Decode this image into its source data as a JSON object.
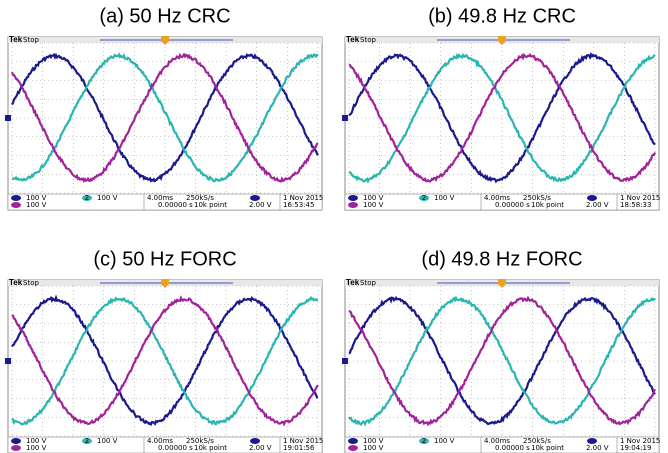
{
  "panels": [
    {
      "title": "(a) 50 Hz CRC",
      "brand": "Tek",
      "status": "Stop",
      "channel_scales": [
        "100 V",
        "100 V",
        "100 V"
      ],
      "channel2_label": "2",
      "timebase": "4.00ms",
      "sample_rate": "250kS/s",
      "delay": "0.00000 s",
      "record": "10k point",
      "trigger_level": "2.00 V",
      "date": "1 Nov 2015",
      "time": "16:53:45"
    },
    {
      "title": "(b) 49.8 Hz CRC",
      "brand": "Tek",
      "status": "Stop",
      "channel_scales": [
        "100 V",
        "100 V",
        "100 V"
      ],
      "channel2_label": "2",
      "timebase": "4.00ms",
      "sample_rate": "250kS/s",
      "delay": "0.00000 s",
      "record": "10k point",
      "trigger_level": "2.00 V",
      "date": "1 Nov 2015",
      "time": "18:58:33"
    },
    {
      "title": "(c) 50 Hz FORC",
      "brand": "Tek",
      "status": "Stop",
      "channel_scales": [
        "100 V",
        "100 V",
        "100 V"
      ],
      "channel2_label": "2",
      "timebase": "4.00ms",
      "sample_rate": "250kS/s",
      "delay": "0.00000 s",
      "record": "10k point",
      "trigger_level": "2.00 V",
      "date": "1 Nov 2015",
      "time": "19:01:56"
    },
    {
      "title": "(d) 49.8 Hz FORC",
      "brand": "Tek",
      "status": "Stop",
      "channel_scales": [
        "100 V",
        "100 V",
        "100 V"
      ],
      "channel2_label": "2",
      "timebase": "4.00ms",
      "sample_rate": "250kS/s",
      "delay": "0.00000 s",
      "record": "10k point",
      "trigger_level": "2.00 V",
      "date": "1 Nov 2015",
      "time": "19:04:19"
    }
  ]
}
